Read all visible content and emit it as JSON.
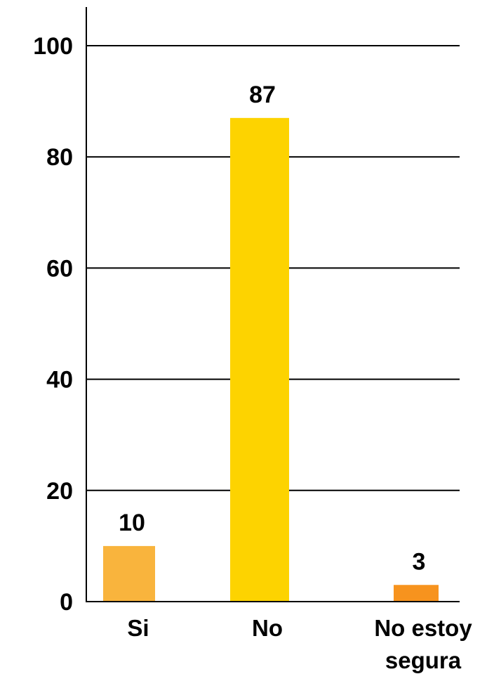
{
  "chart_data": {
    "type": "bar",
    "categories": [
      [
        "Si"
      ],
      [
        "No"
      ],
      [
        "No estoy",
        "segura"
      ]
    ],
    "values": [
      10,
      87,
      3
    ],
    "data_labels": [
      "10",
      "87",
      "3"
    ],
    "colors": [
      "#F9B43D",
      "#FDD300",
      "#F7931E"
    ],
    "ylim": [
      0,
      100
    ],
    "yticks": [
      0,
      20,
      40,
      60,
      80,
      100
    ],
    "ytick_labels": [
      "0",
      "20",
      "40",
      "60",
      "80",
      "100"
    ],
    "grid": true,
    "legend": "none"
  }
}
